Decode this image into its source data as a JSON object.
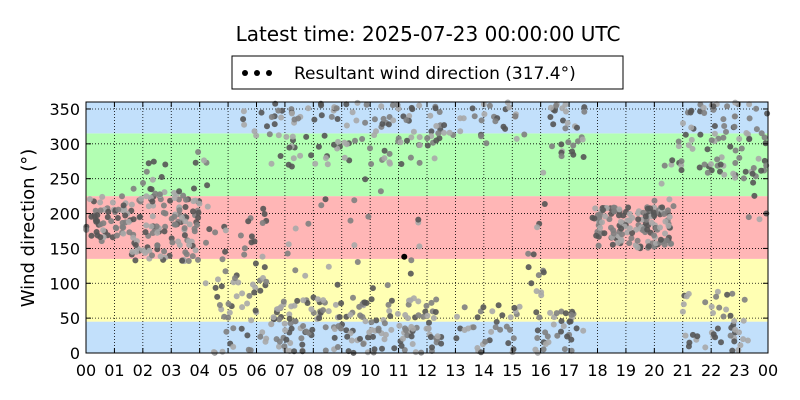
{
  "chart_data": {
    "type": "scatter",
    "title": "Latest time: 2025-07-23 00:00:00 UTC",
    "ylabel": "Wind direction (°)",
    "xlabel": "",
    "xlim": [
      0,
      24
    ],
    "ylim": [
      0,
      360
    ],
    "x_ticks": [
      "00",
      "01",
      "02",
      "03",
      "04",
      "05",
      "06",
      "07",
      "08",
      "09",
      "10",
      "11",
      "12",
      "13",
      "14",
      "15",
      "16",
      "17",
      "18",
      "19",
      "20",
      "21",
      "22",
      "23",
      "00"
    ],
    "y_ticks": [
      0,
      50,
      100,
      150,
      200,
      250,
      300,
      350
    ],
    "grid": true,
    "legend": {
      "label": "Resultant wind direction (317.4°)",
      "placement": "top-center"
    },
    "bands": [
      {
        "from": 0,
        "to": 45,
        "color": "#c2e0fb"
      },
      {
        "from": 45,
        "to": 135,
        "color": "#ffffb3"
      },
      {
        "from": 135,
        "to": 225,
        "color": "#ffb6b6"
      },
      {
        "from": 225,
        "to": 315,
        "color": "#b3ffb3"
      },
      {
        "from": 315,
        "to": 360,
        "color": "#c2e0fb"
      }
    ],
    "marker_colors": [
      "#a9a9a9",
      "#808080",
      "#555555"
    ],
    "clusters": [
      {
        "x0": 0.0,
        "x1": 1.6,
        "y0": 160,
        "y1": 225,
        "n": 60
      },
      {
        "x0": 1.6,
        "x1": 4.0,
        "y0": 130,
        "y1": 240,
        "n": 130
      },
      {
        "x0": 2.0,
        "x1": 2.8,
        "y0": 230,
        "y1": 275,
        "n": 8
      },
      {
        "x0": 3.8,
        "x1": 4.3,
        "y0": 240,
        "y1": 290,
        "n": 5
      },
      {
        "x0": 4.0,
        "x1": 6.5,
        "y0": 90,
        "y1": 220,
        "n": 30
      },
      {
        "x0": 4.5,
        "x1": 7.0,
        "y0": 0,
        "y1": 120,
        "n": 45
      },
      {
        "x0": 5.5,
        "x1": 7.0,
        "y0": 300,
        "y1": 360,
        "n": 12
      },
      {
        "x0": 6.5,
        "x1": 12.5,
        "y0": 0,
        "y1": 80,
        "n": 170
      },
      {
        "x0": 6.5,
        "x1": 12.5,
        "y0": 270,
        "y1": 360,
        "n": 110
      },
      {
        "x0": 7.0,
        "x1": 12.0,
        "y0": 90,
        "y1": 270,
        "n": 25
      },
      {
        "x0": 12.0,
        "x1": 15.5,
        "y0": 0,
        "y1": 70,
        "n": 40
      },
      {
        "x0": 12.0,
        "x1": 15.5,
        "y0": 300,
        "y1": 360,
        "n": 35
      },
      {
        "x0": 15.5,
        "x1": 16.2,
        "y0": 80,
        "y1": 160,
        "n": 10
      },
      {
        "x0": 15.8,
        "x1": 17.5,
        "y0": 0,
        "y1": 60,
        "n": 35
      },
      {
        "x0": 15.8,
        "x1": 16.2,
        "y0": 180,
        "y1": 260,
        "n": 4
      },
      {
        "x0": 16.3,
        "x1": 17.6,
        "y0": 280,
        "y1": 360,
        "n": 30
      },
      {
        "x0": 17.8,
        "x1": 20.6,
        "y0": 150,
        "y1": 210,
        "n": 150
      },
      {
        "x0": 20.0,
        "x1": 21.0,
        "y0": 200,
        "y1": 280,
        "n": 12
      },
      {
        "x0": 20.8,
        "x1": 24.0,
        "y0": 250,
        "y1": 360,
        "n": 80
      },
      {
        "x0": 21.0,
        "x1": 23.3,
        "y0": 0,
        "y1": 90,
        "n": 45
      },
      {
        "x0": 23.3,
        "x1": 24.0,
        "y0": 180,
        "y1": 270,
        "n": 8
      }
    ],
    "highlight_point": {
      "x": 11.2,
      "y": 138
    }
  }
}
